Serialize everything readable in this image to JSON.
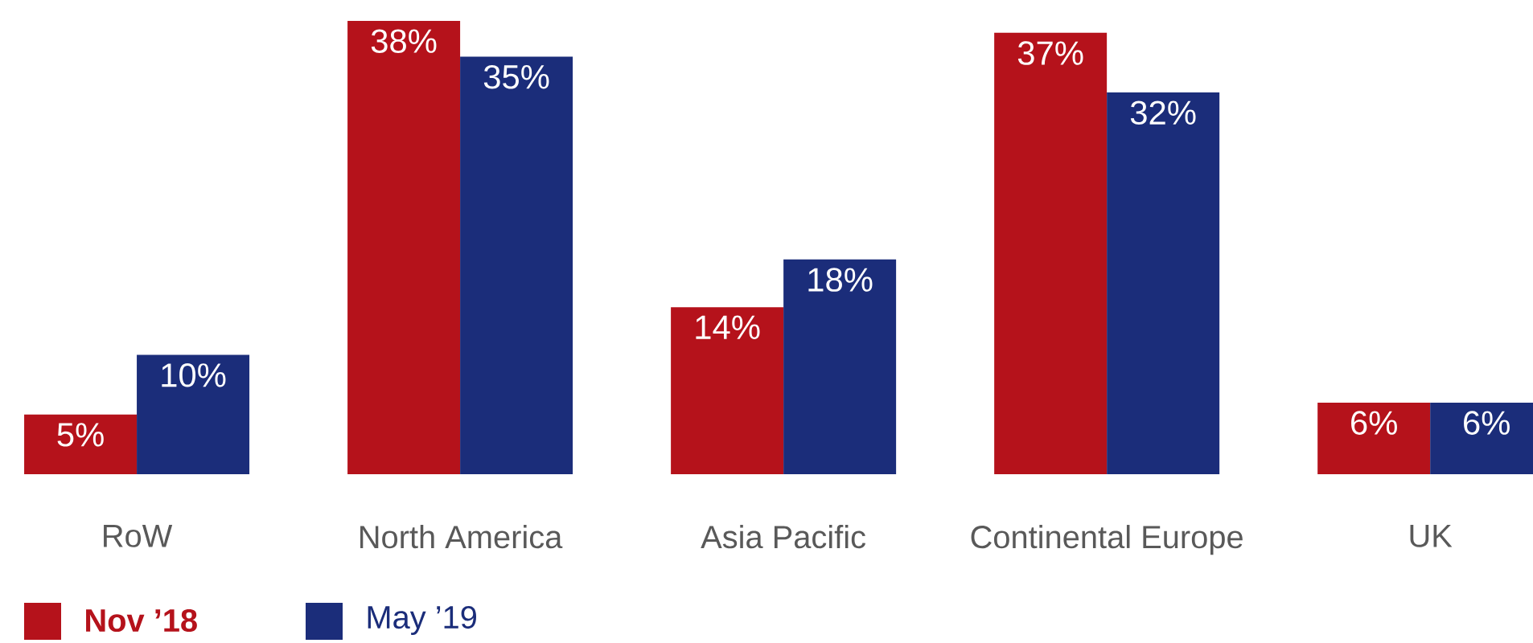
{
  "chart_data": {
    "type": "bar",
    "categories": [
      "RoW",
      "North America",
      "Asia Pacific",
      "Continental Europe",
      "UK"
    ],
    "series": [
      {
        "name": "Nov ’18",
        "color": "#b5121b",
        "values": [
          5,
          38,
          14,
          37,
          6
        ],
        "value_labels": [
          "5%",
          "38%",
          "14%",
          "37%",
          "6%"
        ]
      },
      {
        "name": "May ’19",
        "color": "#1b2d7a",
        "values": [
          10,
          35,
          18,
          32,
          6
        ],
        "value_labels": [
          "10%",
          "35%",
          "18%",
          "32%",
          "6%"
        ]
      }
    ],
    "legend": "bottom left"
  }
}
